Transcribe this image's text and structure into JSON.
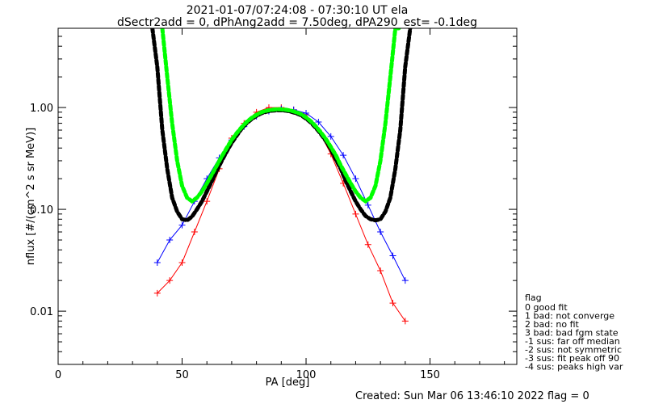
{
  "chart_data": {
    "type": "scatter",
    "title": "2021-01-07/07:24:08 - 07:30:10 UT ela",
    "subtitle": "dSectr2add = 0, dPhAng2add = 7.50deg, dPA290_est=  -0.1deg",
    "xlabel": "PA [deg]",
    "ylabel": "nflux [#/(cm^2 s sr MeV)]",
    "xlim": [
      0,
      185
    ],
    "ylim": [
      0.003,
      6
    ],
    "yscale": "log",
    "x_ticks": [
      0,
      50,
      100,
      150
    ],
    "x_tick_labels": [
      "0",
      "50",
      "100",
      "150"
    ],
    "y_ticks": [
      0.01,
      0.1,
      1.0
    ],
    "y_tick_labels": [
      "0.01",
      "0.10",
      "1.00"
    ],
    "series": [
      {
        "color": "#000000",
        "style": "thick-dashed",
        "x": [
          38,
          40,
          42,
          44,
          46,
          48,
          50,
          52,
          54,
          56,
          58,
          60,
          62,
          64,
          66,
          68,
          70,
          72,
          74,
          76,
          78,
          80,
          82,
          84,
          86,
          88,
          90,
          92,
          94,
          96,
          98,
          100,
          102,
          104,
          106,
          108,
          110,
          112,
          114,
          116,
          118,
          120,
          122,
          124,
          126,
          128,
          130,
          132,
          134,
          136,
          138,
          140,
          142
        ],
        "y": [
          6.0,
          2.5,
          0.6,
          0.25,
          0.13,
          0.095,
          0.08,
          0.078,
          0.085,
          0.1,
          0.12,
          0.15,
          0.19,
          0.24,
          0.3,
          0.37,
          0.45,
          0.53,
          0.62,
          0.7,
          0.77,
          0.83,
          0.88,
          0.91,
          0.93,
          0.94,
          0.94,
          0.93,
          0.91,
          0.88,
          0.84,
          0.78,
          0.71,
          0.63,
          0.55,
          0.47,
          0.39,
          0.31,
          0.25,
          0.19,
          0.15,
          0.12,
          0.1,
          0.086,
          0.08,
          0.078,
          0.08,
          0.095,
          0.13,
          0.25,
          0.6,
          2.5,
          6.0
        ]
      },
      {
        "color": "#00ff00",
        "style": "thick-dashed",
        "x": [
          42,
          44,
          46,
          48,
          50,
          52,
          54,
          56,
          58,
          60,
          62,
          64,
          66,
          68,
          70,
          72,
          74,
          76,
          78,
          80,
          82,
          84,
          86,
          88,
          90,
          92,
          94,
          96,
          98,
          100,
          102,
          104,
          106,
          108,
          110,
          112,
          114,
          116,
          118,
          120,
          122,
          124,
          126,
          128,
          130,
          132,
          134,
          136,
          138
        ],
        "y": [
          6.0,
          2.0,
          0.7,
          0.3,
          0.17,
          0.13,
          0.12,
          0.13,
          0.15,
          0.18,
          0.22,
          0.27,
          0.33,
          0.4,
          0.48,
          0.56,
          0.64,
          0.72,
          0.79,
          0.85,
          0.9,
          0.93,
          0.95,
          0.96,
          0.96,
          0.95,
          0.93,
          0.9,
          0.86,
          0.8,
          0.73,
          0.65,
          0.57,
          0.49,
          0.41,
          0.34,
          0.27,
          0.22,
          0.18,
          0.15,
          0.13,
          0.12,
          0.13,
          0.17,
          0.3,
          0.7,
          2.0,
          6.0,
          6.0
        ]
      },
      {
        "color": "#ff0000",
        "style": "plus-markers-lines",
        "x": [
          40,
          45,
          50,
          55,
          60,
          65,
          70,
          75,
          80,
          85,
          90,
          95,
          100,
          105,
          110,
          115,
          120,
          125,
          130,
          135,
          140
        ],
        "y": [
          0.015,
          0.02,
          0.03,
          0.06,
          0.12,
          0.25,
          0.5,
          0.7,
          0.9,
          1.0,
          1.0,
          0.95,
          0.85,
          0.6,
          0.35,
          0.18,
          0.09,
          0.045,
          0.025,
          0.012,
          0.008
        ]
      },
      {
        "color": "#0000ff",
        "style": "plus-markers-lines",
        "x": [
          40,
          45,
          50,
          55,
          60,
          65,
          70,
          75,
          80,
          85,
          90,
          95,
          100,
          105,
          110,
          115,
          120,
          125,
          130,
          135,
          140
        ],
        "y": [
          0.03,
          0.05,
          0.07,
          0.12,
          0.2,
          0.32,
          0.48,
          0.65,
          0.82,
          0.92,
          0.97,
          0.95,
          0.88,
          0.72,
          0.52,
          0.34,
          0.2,
          0.11,
          0.06,
          0.035,
          0.02
        ]
      }
    ],
    "legend": {
      "placement": "bottom-right",
      "title": "flag",
      "entries": [
        " 0 good fit",
        " 1 bad: not converge",
        " 2 bad: no fit",
        " 3 bad: bad fgm state",
        "-1 sus: far off median",
        "-2 sus: not symmetric",
        "-3 sus: fit peak off 90",
        "-4 sus: peaks high var"
      ]
    },
    "footer": "Created: Sun Mar 06 13:46:10 2022   flag = 0",
    "grid": false
  }
}
